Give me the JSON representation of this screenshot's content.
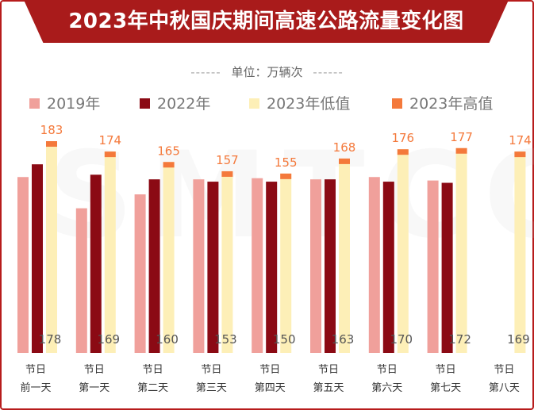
{
  "title": "2023年中秋国庆期间高速公路流量变化图",
  "unit": {
    "label": "单位：万辆次",
    "dash_left": "------",
    "dash_right": "------"
  },
  "watermark": "SMTCC",
  "legend": [
    {
      "label": "2019年",
      "color": "#f0a09b"
    },
    {
      "label": "2022年",
      "color": "#8b0a14"
    },
    {
      "label": "2023年低值",
      "color": "#fdefb7"
    },
    {
      "label": "2023年高值",
      "color": "#f4793b"
    }
  ],
  "chart_data": {
    "type": "bar",
    "title": "2023年中秋国庆期间高速公路流量变化图",
    "unit": "万辆次",
    "categories": [
      [
        "节日",
        "前一天"
      ],
      [
        "节日",
        "第一天"
      ],
      [
        "节日",
        "第二天"
      ],
      [
        "节日",
        "第三天"
      ],
      [
        "节日",
        "第四天"
      ],
      [
        "节日",
        "第五天"
      ],
      [
        "节日",
        "第六天"
      ],
      [
        "节日",
        "第七天"
      ],
      [
        "节日",
        "第八天"
      ]
    ],
    "series": [
      {
        "name": "2019年",
        "color": "#f0a09b",
        "values": [
          152,
          125,
          137,
          150,
          151,
          150,
          152,
          149,
          null
        ]
      },
      {
        "name": "2022年",
        "color": "#8b0a14",
        "values": [
          163,
          154,
          150,
          148,
          148,
          150,
          148,
          147,
          null
        ]
      },
      {
        "name": "2023年低值",
        "color": "#fdefb7",
        "values": [
          178,
          169,
          160,
          153,
          150,
          163,
          170,
          172,
          169
        ]
      },
      {
        "name": "2023年高值",
        "color": "#f4793b",
        "values": [
          183,
          174,
          165,
          157,
          155,
          168,
          176,
          177,
          174
        ]
      }
    ],
    "ylim": [
      0,
      190
    ],
    "grid": false,
    "legend_position": "top"
  }
}
